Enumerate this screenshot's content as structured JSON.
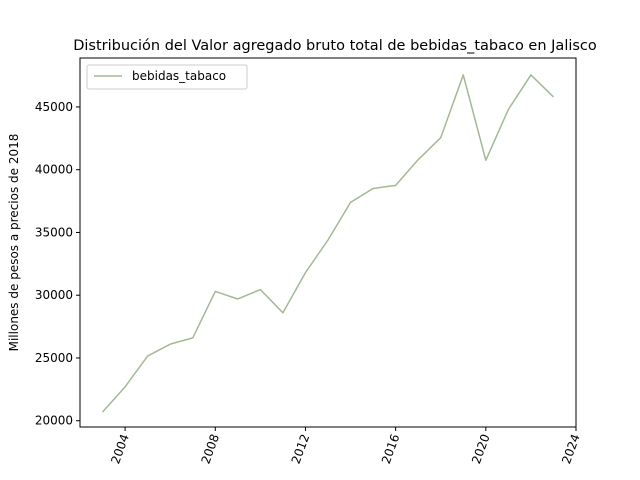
{
  "chart_data": {
    "type": "line",
    "title": "Distribución del Valor agregado bruto total de bebidas_tabaco en Jalisco",
    "xlabel": "",
    "ylabel": "Millones de pesos a precios de 2018",
    "xlim": [
      2002,
      2024
    ],
    "ylim": [
      19500,
      48900
    ],
    "x_ticks": [
      2004,
      2008,
      2012,
      2016,
      2020,
      2024
    ],
    "y_ticks": [
      20000,
      25000,
      30000,
      35000,
      40000,
      45000
    ],
    "legend_position": "top-left",
    "grid": false,
    "series": [
      {
        "name": "bebidas_tabaco",
        "color": "#a3b994",
        "x": [
          2003,
          2004,
          2005,
          2006,
          2007,
          2008,
          2009,
          2010,
          2011,
          2012,
          2013,
          2014,
          2015,
          2016,
          2017,
          2018,
          2019,
          2020,
          2021,
          2022,
          2023
        ],
        "y": [
          20700,
          22700,
          25150,
          26100,
          26600,
          30300,
          29700,
          30450,
          28600,
          31800,
          34400,
          37400,
          38500,
          38750,
          40800,
          42550,
          47550,
          40750,
          44800,
          47550,
          45800
        ]
      }
    ]
  }
}
